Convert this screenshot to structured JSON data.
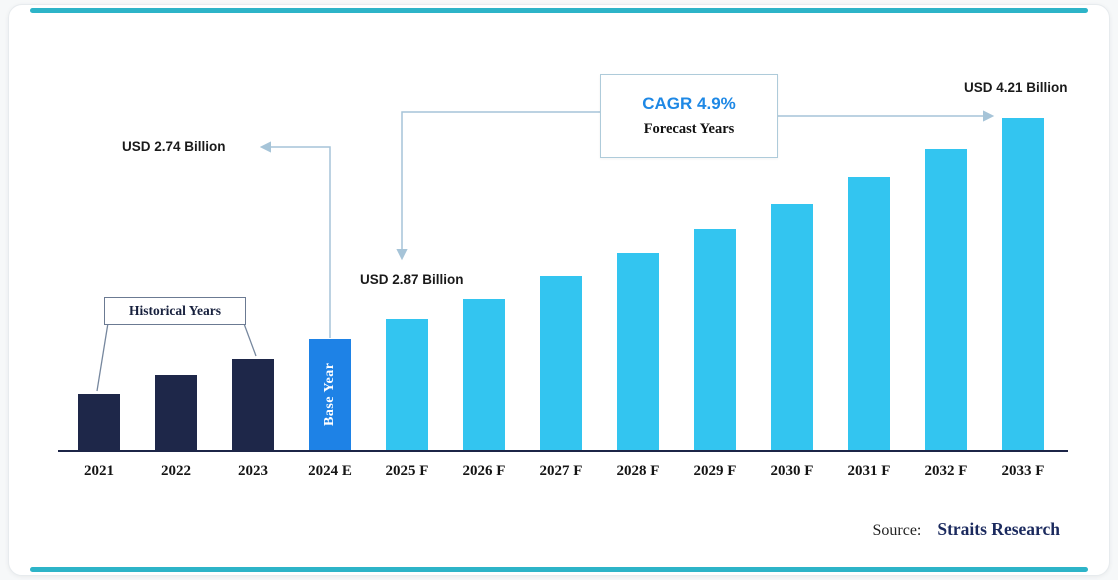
{
  "page": {
    "accent_color": "#2db4c8"
  },
  "chart_data": {
    "type": "bar",
    "title": "",
    "unit": "USD Billion",
    "categories": [
      "2021",
      "2022",
      "2023",
      "2024 E",
      "2025 F",
      "2026 F",
      "2027 F",
      "2028 F",
      "2029 F",
      "2030 F",
      "2031 F",
      "2032 F",
      "2033 F"
    ],
    "values": [
      2.37,
      2.5,
      2.61,
      2.74,
      2.87,
      3.01,
      3.16,
      3.31,
      3.47,
      3.64,
      3.82,
      4.01,
      4.21
    ],
    "ylim": [
      2.0,
      4.3
    ],
    "grid": false,
    "legend": "none",
    "series_groups": [
      {
        "name": "Historical Years",
        "color": "#1e2749",
        "indices": [
          0,
          1,
          2
        ]
      },
      {
        "name": "Base Year",
        "color": "#1e82e6",
        "indices": [
          3
        ]
      },
      {
        "name": "Forecast Years",
        "color": "#33c5f0",
        "indices": [
          4,
          5,
          6,
          7,
          8,
          9,
          10,
          11,
          12
        ]
      }
    ],
    "annotations": {
      "historical_label": "Historical Years",
      "base_year_label": "Base Year",
      "base_year_value": "USD 2.74 Billion",
      "first_forecast_value": "USD 2.87 Billion",
      "last_forecast_value": "USD 4.21 Billion",
      "cagr_label": "CAGR 4.9%",
      "forecast_label": "Forecast Years",
      "cagr_color": "#1e88e5"
    }
  },
  "footer": {
    "source_label": "Source:",
    "source_name": "Straits Research"
  }
}
